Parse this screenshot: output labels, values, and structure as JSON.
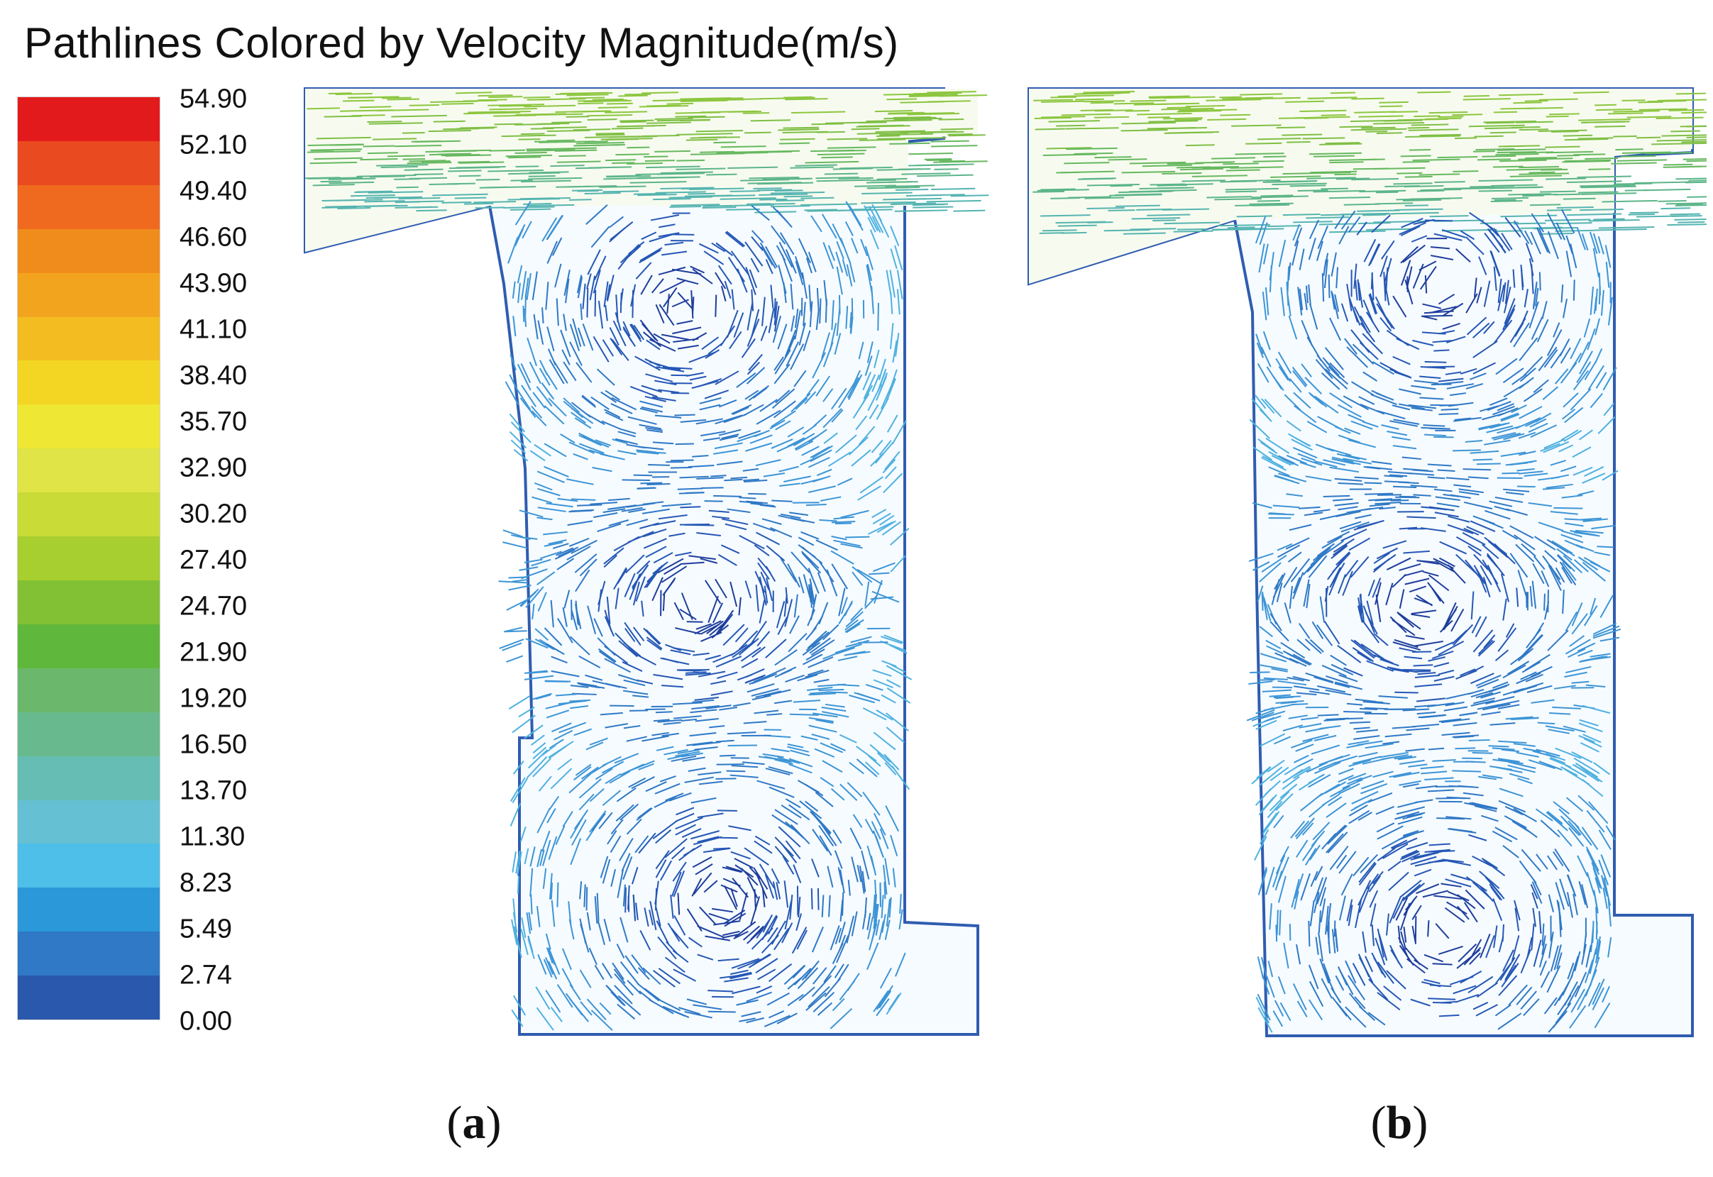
{
  "title": "Pathlines Colored by Velocity Magnitude(m/s)",
  "legend": {
    "ticks": [
      "54.90",
      "52.10",
      "49.40",
      "46.60",
      "43.90",
      "41.10",
      "38.40",
      "35.70",
      "32.90",
      "30.20",
      "27.40",
      "24.70",
      "21.90",
      "19.20",
      "16.50",
      "13.70",
      "11.30",
      "8.23",
      "5.49",
      "2.74",
      "0.00"
    ],
    "colors": [
      "#e31a1c",
      "#ea4a1f",
      "#ef6a1f",
      "#f08c1c",
      "#f3a41f",
      "#f3bd22",
      "#f2d623",
      "#eee734",
      "#e0e446",
      "#c8db37",
      "#a7cf2f",
      "#83c134",
      "#5fb83b",
      "#6bb86d",
      "#69b98f",
      "#66bdb3",
      "#65c0d3",
      "#4dbfe8",
      "#2a98d9",
      "#2f79c6",
      "#2958ad"
    ]
  },
  "panels": [
    {
      "id": "a",
      "caption_open": "(",
      "caption_letter": "a",
      "caption_close": ")"
    },
    {
      "id": "b",
      "caption_open": "(",
      "caption_letter": "b",
      "caption_close": ")"
    }
  ]
}
